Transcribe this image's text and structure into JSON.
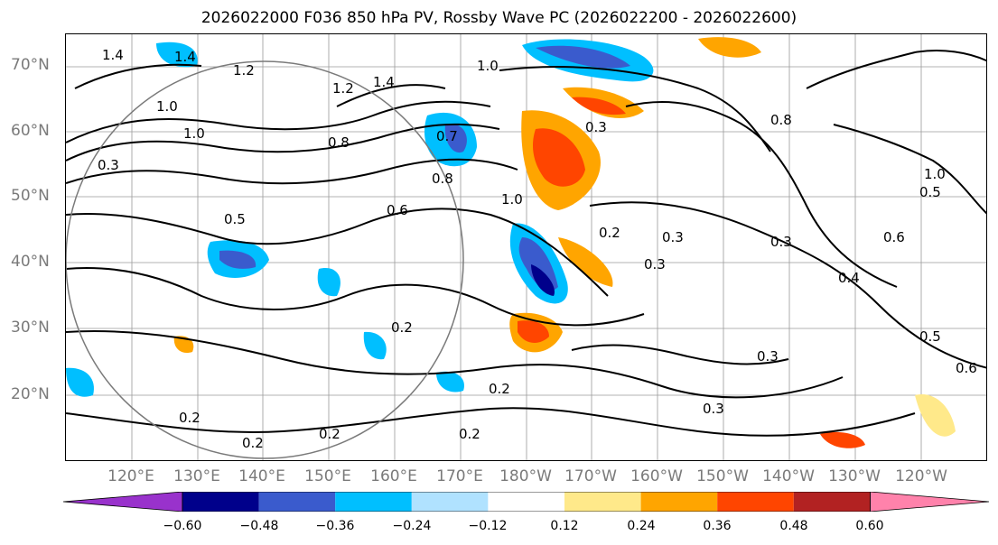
{
  "title": "2026022000 F036 850 hPa PV, Rossby Wave PC (2026022200 - 2026022600)",
  "lat_labels": [
    "70°N",
    "60°N",
    "50°N",
    "40°N",
    "30°N",
    "20°N"
  ],
  "lon_labels": [
    "120°E",
    "130°E",
    "140°E",
    "150°E",
    "160°E",
    "170°E",
    "180°W",
    "170°W",
    "160°W",
    "150°W",
    "140°W",
    "130°W",
    "120°W"
  ],
  "contour_labels": [
    "1.4",
    "1.4",
    "1.2",
    "1.4",
    "1.0",
    "1.2",
    "1.0",
    "1.0",
    "0.8",
    "0.3",
    "0.7",
    "0.8",
    "0.5",
    "0.6",
    "1.0",
    "0.3",
    "0.8",
    "0.3",
    "0.3",
    "0.4",
    "0.5",
    "0.6",
    "1.0",
    "0.2",
    "0.2",
    "0.2",
    "0.2",
    "0.2",
    "0.2",
    "0.3",
    "0.3",
    "0.3",
    "0.2",
    "0.5",
    "0.6"
  ],
  "colorbar": {
    "ticks": [
      "−0.60",
      "−0.48",
      "−0.36",
      "−0.24",
      "−0.12",
      "0.12",
      "0.24",
      "0.36",
      "0.48",
      "0.60"
    ],
    "colors": [
      "#9932cc",
      "#00008b",
      "#3a5bcd",
      "#00bfff",
      "#b0e2ff",
      "#ffffff",
      "#ffe98a",
      "#ffa500",
      "#ff4500",
      "#b22222",
      "#ff82ab"
    ]
  },
  "colors": {
    "land_line": "#000000",
    "grid": "#9a9a9a",
    "contour": "#000000"
  }
}
